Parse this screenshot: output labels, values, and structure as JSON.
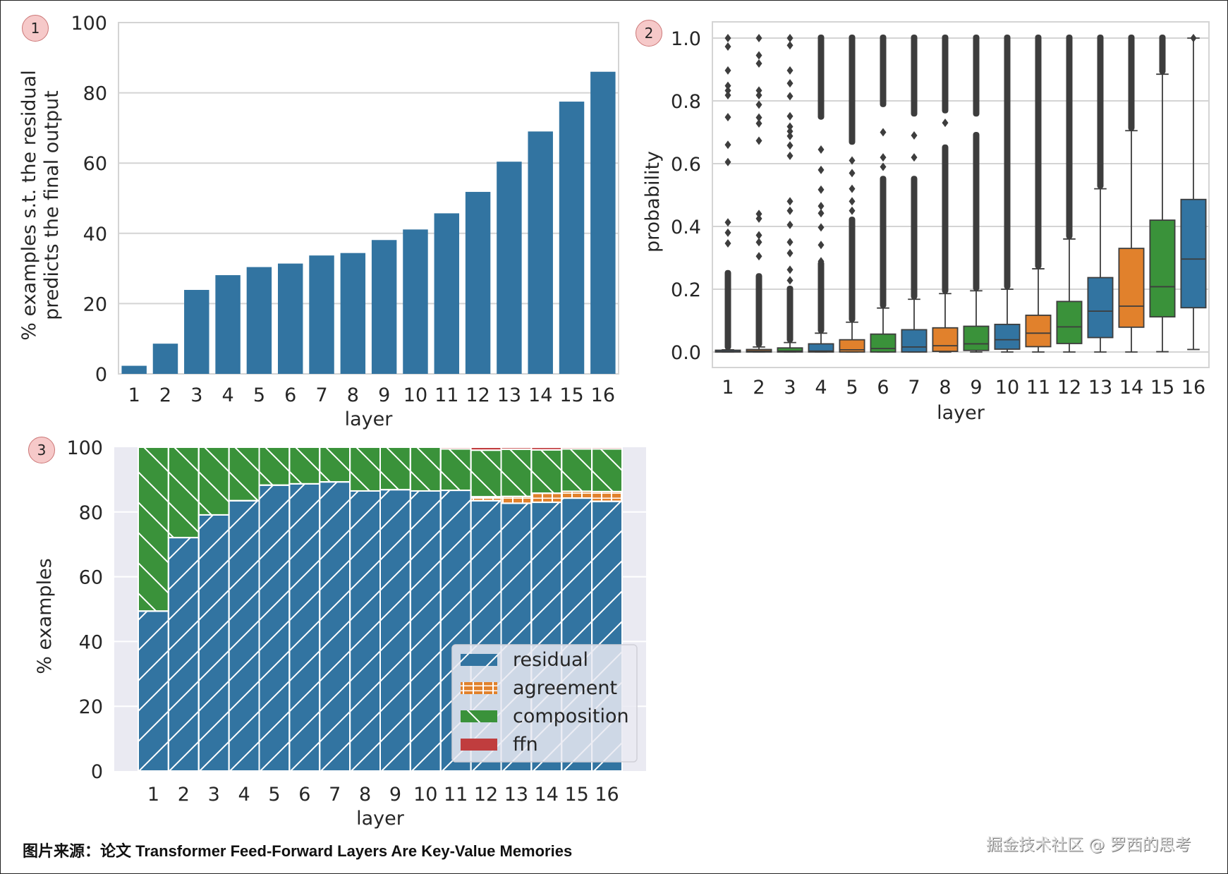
{
  "caption": "图片来源：论文 Transformer Feed-Forward Layers Are Key-Value Memories",
  "watermark": "掘金技术社区 @ 罗西的思考",
  "badges": [
    "1",
    "2",
    "3"
  ],
  "colors": {
    "blue": "#3274a1",
    "orange": "#e1812c",
    "green": "#3a923a",
    "red": "#c03d3e",
    "grid": "#d4d4d4",
    "darkgrid_bg": "#eaeaf2",
    "outlier": "#3d3d3d"
  },
  "chart_data": [
    {
      "id": "chart1",
      "type": "bar",
      "title": "",
      "xlabel": "layer",
      "ylabel": [
        "% examples s.t. the residual",
        "predicts the final output"
      ],
      "categories": [
        "1",
        "2",
        "3",
        "4",
        "5",
        "6",
        "7",
        "8",
        "9",
        "10",
        "11",
        "12",
        "13",
        "14",
        "15",
        "16"
      ],
      "values": [
        2.3,
        8.6,
        23.9,
        28.1,
        30.4,
        31.4,
        33.7,
        34.4,
        38.1,
        41.1,
        45.7,
        51.8,
        60.4,
        69.0,
        77.5,
        86.0
      ],
      "ylim": [
        0,
        100
      ],
      "yticks": [
        0,
        20,
        40,
        60,
        80,
        100
      ],
      "grid": true,
      "color": "#3274a1"
    },
    {
      "id": "chart2",
      "type": "box",
      "title": "",
      "xlabel": "layer",
      "ylabel": "probability",
      "categories": [
        "1",
        "2",
        "3",
        "4",
        "5",
        "6",
        "7",
        "8",
        "9",
        "10",
        "11",
        "12",
        "13",
        "14",
        "15",
        "16"
      ],
      "ylim": [
        -0.05,
        1.05
      ],
      "yticks": [
        0.0,
        0.2,
        0.4,
        0.6,
        0.8,
        1.0
      ],
      "grid": true,
      "palette_cycle": [
        "#3274a1",
        "#e1812c",
        "#3a923a"
      ],
      "boxes": [
        {
          "q1": 0.0,
          "median": 0.001,
          "q3": 0.003,
          "whislo": 0.0,
          "whishi": 0.007,
          "outliers": [
            1.0,
            0.973,
            0.897,
            0.848,
            0.833,
            0.818,
            0.748,
            0.66,
            0.605,
            0.413,
            0.38,
            0.346
          ],
          "dense_outliers": [
            0.007,
            0.25
          ]
        },
        {
          "q1": 0.0,
          "median": 0.003,
          "q3": 0.008,
          "whislo": 0.0,
          "whishi": 0.016,
          "outliers": [
            1.0,
            0.945,
            0.919,
            0.833,
            0.818,
            0.788,
            0.747,
            0.728,
            0.673,
            0.44,
            0.425,
            0.372,
            0.35,
            0.305
          ],
          "dense_outliers": [
            0.016,
            0.24
          ]
        },
        {
          "q1": 0.0,
          "median": 0.003,
          "q3": 0.013,
          "whislo": 0.0,
          "whishi": 0.03,
          "outliers": [
            1.0,
            0.977,
            0.897,
            0.856,
            0.815,
            0.751,
            0.718,
            0.703,
            0.688,
            0.658,
            0.625,
            0.48,
            0.45,
            0.405,
            0.35,
            0.315,
            0.262,
            0.228
          ],
          "dense_outliers": [
            0.03,
            0.2
          ]
        },
        {
          "q1": 0.0,
          "median": 0.003,
          "q3": 0.026,
          "whislo": 0.0,
          "whishi": 0.06,
          "outliers": [
            0.645,
            0.58,
            0.517,
            0.465,
            0.442,
            0.397,
            0.341,
            0.289
          ],
          "dense_outliers": [
            0.06,
            0.28
          ],
          "dense_outliers_2": [
            0.74,
            1.0
          ]
        },
        {
          "q1": 0.0,
          "median": 0.007,
          "q3": 0.039,
          "whislo": 0.0,
          "whishi": 0.095,
          "outliers": [
            0.61,
            0.57,
            0.52,
            0.48,
            0.45
          ],
          "dense_outliers": [
            0.095,
            0.42
          ],
          "dense_outliers_2": [
            0.66,
            1.0
          ]
        },
        {
          "q1": 0.0,
          "median": 0.011,
          "q3": 0.057,
          "whislo": 0.0,
          "whishi": 0.14,
          "outliers": [
            0.7,
            0.62,
            0.59
          ],
          "dense_outliers": [
            0.14,
            0.55
          ],
          "dense_outliers_2": [
            0.78,
            1.0
          ]
        },
        {
          "q1": 0.0,
          "median": 0.016,
          "q3": 0.071,
          "whislo": 0.0,
          "whishi": 0.168,
          "outliers": [
            0.69,
            0.62
          ],
          "dense_outliers": [
            0.168,
            0.55
          ],
          "dense_outliers_2": [
            0.75,
            1.0
          ]
        },
        {
          "q1": 0.002,
          "median": 0.02,
          "q3": 0.077,
          "whislo": 0.0,
          "whishi": 0.186,
          "outliers": [
            0.73
          ],
          "dense_outliers": [
            0.186,
            0.65
          ],
          "dense_outliers_2": [
            0.76,
            1.0
          ]
        },
        {
          "q1": 0.005,
          "median": 0.026,
          "q3": 0.082,
          "whislo": 0.0,
          "whishi": 0.195,
          "outliers": [],
          "dense_outliers": [
            0.195,
            0.69
          ],
          "dense_outliers_2": [
            0.75,
            1.0
          ]
        },
        {
          "q1": 0.009,
          "median": 0.039,
          "q3": 0.088,
          "whislo": 0.0,
          "whishi": 0.2,
          "outliers": [],
          "dense_outliers": [
            0.2,
            1.0
          ]
        },
        {
          "q1": 0.017,
          "median": 0.06,
          "q3": 0.117,
          "whislo": 0.0,
          "whishi": 0.265,
          "outliers": [],
          "dense_outliers": [
            0.265,
            1.0
          ]
        },
        {
          "q1": 0.027,
          "median": 0.08,
          "q3": 0.161,
          "whislo": 0.0,
          "whishi": 0.36,
          "outliers": [],
          "dense_outliers": [
            0.36,
            1.0
          ]
        },
        {
          "q1": 0.046,
          "median": 0.13,
          "q3": 0.237,
          "whislo": 0.0,
          "whishi": 0.52,
          "outliers": [],
          "dense_outliers": [
            0.52,
            1.0
          ]
        },
        {
          "q1": 0.079,
          "median": 0.146,
          "q3": 0.33,
          "whislo": 0.0,
          "whishi": 0.705,
          "outliers": [],
          "dense_outliers": [
            0.705,
            1.0
          ]
        },
        {
          "q1": 0.112,
          "median": 0.208,
          "q3": 0.42,
          "whislo": 0.001,
          "whishi": 0.885,
          "outliers": [],
          "dense_outliers": [
            0.885,
            1.0
          ]
        },
        {
          "q1": 0.141,
          "median": 0.296,
          "q3": 0.486,
          "whislo": 0.008,
          "whishi": 1.0,
          "outliers": [
            1.0
          ],
          "dense_outliers": null
        }
      ]
    },
    {
      "id": "chart3",
      "type": "stacked_bar",
      "title": "",
      "xlabel": "layer",
      "ylabel": "% examples",
      "categories": [
        "1",
        "2",
        "3",
        "4",
        "5",
        "6",
        "7",
        "8",
        "9",
        "10",
        "11",
        "12",
        "13",
        "14",
        "15",
        "16"
      ],
      "ylim": [
        0,
        100
      ],
      "yticks": [
        0,
        20,
        40,
        60,
        80,
        100
      ],
      "grid": true,
      "style": "darkgrid",
      "legend": {
        "placement": "lower-right",
        "entries": [
          "residual",
          "agreement",
          "composition",
          "ffn"
        ]
      },
      "series": [
        {
          "name": "residual",
          "color": "#3274a1",
          "hatch": "/",
          "values": [
            49.4,
            72.1,
            79.1,
            83.5,
            88.3,
            88.7,
            89.3,
            86.5,
            86.9,
            86.5,
            86.7,
            83.5,
            82.7,
            83.0,
            84.3,
            83.3
          ]
        },
        {
          "name": "agreement",
          "color": "#e1812c",
          "hatch": "+",
          "values": [
            0,
            0,
            0,
            0,
            0,
            0,
            0,
            0,
            0,
            0,
            0,
            1.2,
            2.1,
            2.8,
            2.1,
            3.0
          ]
        },
        {
          "name": "composition",
          "color": "#3a923a",
          "hatch": "\\",
          "values": [
            50.6,
            27.9,
            20.9,
            16.5,
            11.7,
            11.3,
            10.7,
            13.5,
            13.1,
            13.5,
            12.8,
            14.4,
            14.6,
            13.4,
            13.1,
            13.2
          ]
        },
        {
          "name": "ffn",
          "color": "#c03d3e",
          "hatch": "",
          "values": [
            0,
            0,
            0,
            0,
            0,
            0,
            0,
            0,
            0,
            0,
            0.5,
            0.9,
            0.6,
            0.8,
            0.5,
            0.5
          ]
        }
      ]
    }
  ]
}
